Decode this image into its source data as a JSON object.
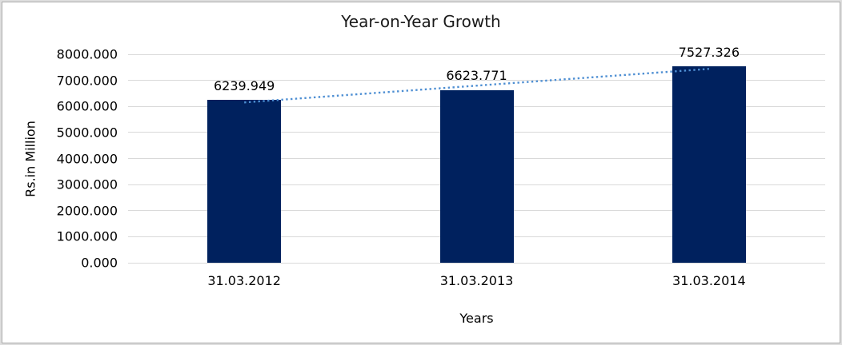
{
  "chart_data": {
    "type": "bar",
    "title": "Year-on-Year Growth",
    "xlabel": "Years",
    "ylabel": "Rs.in Million",
    "categories": [
      "31.03.2012",
      "31.03.2013",
      "31.03.2014"
    ],
    "values": [
      6239.949,
      6623.771,
      7527.326
    ],
    "data_labels": [
      "6239.949",
      "6623.771",
      "7527.326"
    ],
    "ylim": [
      0,
      8000
    ],
    "y_tick_step": 1000,
    "y_tick_labels": [
      "0.000",
      "1000.000",
      "2000.000",
      "3000.000",
      "4000.000",
      "5000.000",
      "6000.000",
      "7000.000",
      "8000.000"
    ],
    "grid": true,
    "legend_position": "none",
    "trendline": {
      "type": "linear",
      "style": "dotted",
      "values": [
        6153.327,
        6797.015,
        7440.704
      ]
    },
    "colors": {
      "bar": "#00215E",
      "trendline": "#4E8FD3",
      "gridline": "#D9D9D9"
    }
  }
}
